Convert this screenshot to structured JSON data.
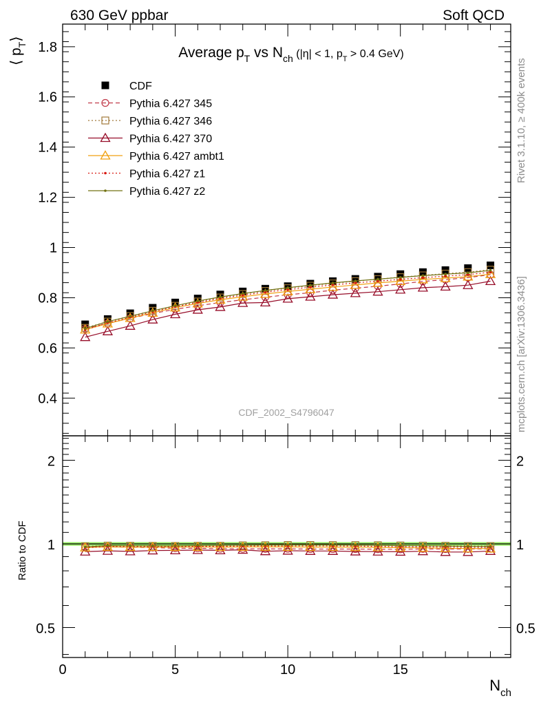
{
  "header": {
    "left": "630 GeV ppbar",
    "right": "Soft QCD"
  },
  "side": {
    "rivet_label": "Rivet 3.1.10, ≥ 400k events",
    "mcplots_label": "mcplots.cern.ch [arXiv:1306.3436]"
  },
  "colors": {
    "CDF": "#000000",
    "Pythia 6.427 345": "#c03848",
    "Pythia 6.427 346": "#a07838",
    "Pythia 6.427 370": "#960c28",
    "Pythia 6.427 ambt1": "#f0a010",
    "Pythia 6.427 z1": "#d81810",
    "Pythia 6.427 z2": "#707010",
    "ratio_band": "#9cec6c"
  },
  "chart_data": [
    {
      "type": "line",
      "title": {
        "main": "Average p",
        "main_sub": "T",
        "vs": " vs N",
        "vs_sub": "ch",
        "cut1": " (|η| < 1, p",
        "cut_sub": "T",
        "cut2": " > 0.4 GeV)"
      },
      "ylabel": "⟨ p",
      "ylabel_sub": "T",
      "ylabel_end": "⟩",
      "analysis_label": "CDF_2002_S4796047",
      "xlim": [
        0,
        19.9
      ],
      "ylim": [
        0.25,
        1.89
      ],
      "yticks": [
        0.4,
        0.6,
        0.8,
        1,
        1.2,
        1.4,
        1.6,
        1.8
      ],
      "ytick_labels": [
        "0.4",
        "0.6",
        "0.8",
        "1",
        "1.2",
        "1.4",
        "1.6",
        "1.8"
      ],
      "x": [
        1,
        2,
        3,
        4,
        5,
        6,
        7,
        8,
        9,
        10,
        11,
        12,
        13,
        14,
        15,
        16,
        17,
        18,
        19
      ],
      "series": [
        {
          "name": "CDF",
          "marker": "square",
          "line": "none",
          "values": [
            0.694,
            0.715,
            0.738,
            0.76,
            0.781,
            0.797,
            0.813,
            0.825,
            0.836,
            0.846,
            0.856,
            0.866,
            0.875,
            0.884,
            0.894,
            0.902,
            0.91,
            0.918,
            0.929
          ]
        },
        {
          "name": "Pythia 6.427 345",
          "marker": "circle",
          "line": "dashed",
          "values": [
            0.676,
            0.698,
            0.718,
            0.737,
            0.754,
            0.768,
            0.781,
            0.792,
            0.802,
            0.812,
            0.82,
            0.83,
            0.838,
            0.846,
            0.855,
            0.865,
            0.872,
            0.88,
            0.892
          ]
        },
        {
          "name": "Pythia 6.427 346",
          "marker": "square-open",
          "line": "dotted",
          "values": [
            0.68,
            0.705,
            0.727,
            0.748,
            0.768,
            0.785,
            0.801,
            0.815,
            0.827,
            0.838,
            0.848,
            0.857,
            0.866,
            0.874,
            0.882,
            0.889,
            0.896,
            0.902,
            0.912
          ]
        },
        {
          "name": "Pythia 6.427 370",
          "marker": "triangle-open",
          "line": "solid",
          "values": [
            0.643,
            0.666,
            0.688,
            0.713,
            0.734,
            0.752,
            0.763,
            0.779,
            0.781,
            0.796,
            0.804,
            0.812,
            0.818,
            0.824,
            0.832,
            0.84,
            0.844,
            0.85,
            0.866
          ]
        },
        {
          "name": "Pythia 6.427 ambt1",
          "marker": "triangle-open",
          "line": "solid",
          "values": [
            0.673,
            0.697,
            0.719,
            0.74,
            0.761,
            0.777,
            0.792,
            0.804,
            0.815,
            0.825,
            0.834,
            0.843,
            0.851,
            0.859,
            0.866,
            0.873,
            0.878,
            0.884,
            0.894
          ]
        },
        {
          "name": "Pythia 6.427 z1",
          "marker": "dot",
          "line": "dotted",
          "values": [
            0.672,
            0.7,
            0.722,
            0.744,
            0.764,
            0.781,
            0.797,
            0.81,
            0.822,
            0.832,
            0.842,
            0.851,
            0.859,
            0.866,
            0.873,
            0.88,
            0.886,
            0.892,
            0.902
          ]
        },
        {
          "name": "Pythia 6.427 z2",
          "marker": "dot",
          "line": "solid",
          "values": [
            0.677,
            0.705,
            0.726,
            0.748,
            0.768,
            0.787,
            0.803,
            0.817,
            0.829,
            0.84,
            0.85,
            0.859,
            0.867,
            0.874,
            0.881,
            0.888,
            0.894,
            0.899,
            0.909
          ]
        }
      ],
      "legend": "top-left",
      "grid": false
    },
    {
      "type": "line",
      "ylabel": "Ratio to CDF",
      "xlabel": "N",
      "xlabel_sub": "ch",
      "log_y": true,
      "xlim": [
        0,
        19.9
      ],
      "ylim": [
        0.39,
        2.45
      ],
      "xticks": [
        0,
        5,
        10,
        15
      ],
      "xtick_labels": [
        "0",
        "5",
        "10",
        "15"
      ],
      "yticks": [
        0.5,
        1,
        2
      ],
      "ytick_labels": [
        "0.5",
        "1",
        "2"
      ],
      "reference": 1,
      "band": [
        0.985,
        1.015
      ],
      "x": [
        1,
        2,
        3,
        4,
        5,
        6,
        7,
        8,
        9,
        10,
        11,
        12,
        13,
        14,
        15,
        16,
        17,
        18,
        19
      ],
      "series": [
        {
          "name": "Pythia 6.427 345",
          "marker": "circle",
          "line": "dashed",
          "values": [
            0.974,
            0.976,
            0.973,
            0.97,
            0.965,
            0.964,
            0.961,
            0.96,
            0.959,
            0.96,
            0.958,
            0.958,
            0.958,
            0.957,
            0.956,
            0.959,
            0.958,
            0.959,
            0.96
          ]
        },
        {
          "name": "Pythia 6.427 346",
          "marker": "square-open",
          "line": "dotted",
          "values": [
            0.98,
            0.986,
            0.985,
            0.984,
            0.983,
            0.985,
            0.985,
            0.988,
            0.989,
            0.991,
            0.991,
            0.99,
            0.99,
            0.989,
            0.987,
            0.986,
            0.985,
            0.983,
            0.982
          ]
        },
        {
          "name": "Pythia 6.427 370",
          "marker": "triangle-open",
          "line": "solid",
          "values": [
            0.938,
            0.944,
            0.94,
            0.947,
            0.948,
            0.95,
            0.948,
            0.952,
            0.941,
            0.945,
            0.943,
            0.943,
            0.939,
            0.938,
            0.937,
            0.941,
            0.935,
            0.935,
            0.943
          ]
        },
        {
          "name": "Pythia 6.427 ambt1",
          "marker": "triangle-open",
          "line": "solid",
          "values": [
            0.97,
            0.975,
            0.974,
            0.974,
            0.974,
            0.975,
            0.974,
            0.975,
            0.975,
            0.975,
            0.974,
            0.974,
            0.973,
            0.972,
            0.969,
            0.968,
            0.965,
            0.963,
            0.962
          ]
        },
        {
          "name": "Pythia 6.427 z1",
          "marker": "dot",
          "line": "dotted",
          "values": [
            0.968,
            0.979,
            0.978,
            0.979,
            0.978,
            0.98,
            0.98,
            0.982,
            0.983,
            0.983,
            0.984,
            0.983,
            0.982,
            0.98,
            0.977,
            0.976,
            0.974,
            0.972,
            0.971
          ]
        },
        {
          "name": "Pythia 6.427 z2",
          "marker": "dot",
          "line": "solid",
          "values": [
            0.975,
            0.986,
            0.984,
            0.984,
            0.983,
            0.987,
            0.988,
            0.99,
            0.992,
            0.993,
            0.993,
            0.992,
            0.991,
            0.989,
            0.985,
            0.984,
            0.982,
            0.979,
            0.978
          ]
        }
      ]
    }
  ]
}
